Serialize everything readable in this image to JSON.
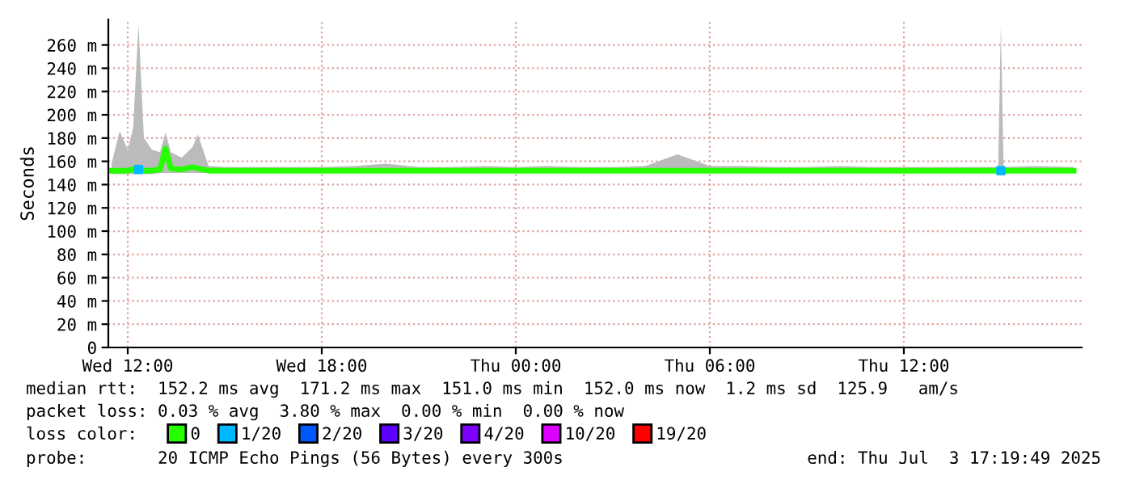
{
  "chart_data": {
    "type": "line",
    "ylabel": "Seconds",
    "x": [
      "2025-07-02T11:30",
      "2025-07-02T11:45",
      "2025-07-02T12:00",
      "2025-07-02T12:10",
      "2025-07-02T12:20",
      "2025-07-02T12:30",
      "2025-07-02T12:45",
      "2025-07-02T13:00",
      "2025-07-02T13:10",
      "2025-07-02T13:20",
      "2025-07-02T13:40",
      "2025-07-02T14:00",
      "2025-07-02T14:10",
      "2025-07-02T14:30",
      "2025-07-02T15:00",
      "2025-07-02T16:00",
      "2025-07-02T17:00",
      "2025-07-02T18:00",
      "2025-07-02T19:00",
      "2025-07-02T20:00",
      "2025-07-02T21:00",
      "2025-07-02T22:00",
      "2025-07-02T23:00",
      "2025-07-03T00:00",
      "2025-07-03T01:00",
      "2025-07-03T02:00",
      "2025-07-03T03:00",
      "2025-07-03T04:00",
      "2025-07-03T05:00",
      "2025-07-03T06:00",
      "2025-07-03T07:00",
      "2025-07-03T08:00",
      "2025-07-03T09:00",
      "2025-07-03T10:00",
      "2025-07-03T11:00",
      "2025-07-03T12:00",
      "2025-07-03T13:00",
      "2025-07-03T14:00",
      "2025-07-03T14:55",
      "2025-07-03T15:00",
      "2025-07-03T15:05",
      "2025-07-03T16:00",
      "2025-07-03T17:15"
    ],
    "series": [
      {
        "name": "0",
        "color": "#26ff00",
        "values": [
          152,
          152,
          152,
          153,
          153,
          152,
          152,
          153,
          171,
          154,
          153,
          155,
          154,
          152,
          152,
          152,
          152,
          152,
          152,
          152,
          152,
          152,
          152,
          152,
          152,
          152,
          152,
          152,
          152,
          152,
          152,
          152,
          152,
          152,
          152,
          152,
          152,
          152,
          152,
          152,
          152,
          152,
          152
        ],
        "lower": [
          149,
          149,
          149,
          149,
          149,
          149,
          149,
          150,
          150,
          150,
          150,
          150,
          150,
          150,
          150,
          150,
          150,
          150,
          150,
          150,
          150,
          150,
          150,
          150,
          150,
          150,
          150,
          150,
          150,
          150,
          150,
          150,
          150,
          150,
          150,
          150,
          150,
          150,
          150,
          150,
          150,
          150,
          150
        ],
        "upper": [
          158,
          186,
          170,
          189,
          278,
          180,
          170,
          168,
          185,
          168,
          163,
          172,
          183,
          156,
          155,
          155,
          155,
          155,
          156,
          158,
          155,
          155,
          156,
          155,
          156,
          155,
          155,
          156,
          166,
          156,
          156,
          155,
          155,
          156,
          155,
          155,
          155,
          155,
          155,
          278,
          155,
          156,
          155
        ]
      },
      {
        "name": "1/20",
        "type": "scatter",
        "marker": "square",
        "color": "#00b8ff",
        "x": [
          "2025-07-02T12:20",
          "2025-07-03T15:00"
        ],
        "values": [
          153,
          152
        ]
      },
      {
        "name": "2/20",
        "type": "scatter",
        "color": "#0059ff",
        "values": [
          null,
          null,
          null,
          null,
          null,
          null,
          null,
          null,
          null,
          null,
          null,
          null,
          null,
          null,
          null,
          null,
          null,
          null,
          null,
          null,
          null,
          null,
          null,
          null,
          null,
          null,
          null,
          null,
          null,
          null,
          null,
          null,
          null,
          null,
          null,
          null,
          null,
          null,
          null,
          null,
          null,
          null,
          null
        ]
      },
      {
        "name": "3/20",
        "type": "scatter",
        "color": "#5e00ff",
        "values": [
          null,
          null,
          null,
          null,
          null,
          null,
          null,
          null,
          null,
          null,
          null,
          null,
          null,
          null,
          null,
          null,
          null,
          null,
          null,
          null,
          null,
          null,
          null,
          null,
          null,
          null,
          null,
          null,
          null,
          null,
          null,
          null,
          null,
          null,
          null,
          null,
          null,
          null,
          null,
          null,
          null,
          null,
          null
        ]
      },
      {
        "name": "4/20",
        "type": "scatter",
        "color": "#7e00ff",
        "values": [
          null,
          null,
          null,
          null,
          null,
          null,
          null,
          null,
          null,
          null,
          null,
          null,
          null,
          null,
          null,
          null,
          null,
          null,
          null,
          null,
          null,
          null,
          null,
          null,
          null,
          null,
          null,
          null,
          null,
          null,
          null,
          null,
          null,
          null,
          null,
          null,
          null,
          null,
          null,
          null,
          null,
          null,
          null
        ]
      },
      {
        "name": "10/20",
        "type": "scatter",
        "color": "#dd00ff",
        "values": [
          null,
          null,
          null,
          null,
          null,
          null,
          null,
          null,
          null,
          null,
          null,
          null,
          null,
          null,
          null,
          null,
          null,
          null,
          null,
          null,
          null,
          null,
          null,
          null,
          null,
          null,
          null,
          null,
          null,
          null,
          null,
          null,
          null,
          null,
          null,
          null,
          null,
          null,
          null,
          null,
          null,
          null,
          null
        ]
      },
      {
        "name": "19/20",
        "type": "scatter",
        "color": "#ff0000",
        "values": [
          null,
          null,
          null,
          null,
          null,
          null,
          null,
          null,
          null,
          null,
          null,
          null,
          null,
          null,
          null,
          null,
          null,
          null,
          null,
          null,
          null,
          null,
          null,
          null,
          null,
          null,
          null,
          null,
          null,
          null,
          null,
          null,
          null,
          null,
          null,
          null,
          null,
          null,
          null,
          null,
          null,
          null,
          null
        ]
      }
    ],
    "xlim": [
      "2025-07-02T11:24",
      "2025-07-03T17:30"
    ],
    "xticks": [
      {
        "value": "2025-07-02T12:00",
        "label": "Wed 12:00"
      },
      {
        "value": "2025-07-02T18:00",
        "label": "Wed 18:00"
      },
      {
        "value": "2025-07-03T00:00",
        "label": "Thu 00:00"
      },
      {
        "value": "2025-07-03T06:00",
        "label": "Thu 06:00"
      },
      {
        "value": "2025-07-03T12:00",
        "label": "Thu 12:00"
      }
    ],
    "ylim": [
      0,
      282
    ],
    "yticks": [
      0,
      {
        "value": 20,
        "label": "20 m"
      },
      {
        "value": 40,
        "label": "40 m"
      },
      {
        "value": 60,
        "label": "60 m"
      },
      {
        "value": 80,
        "label": "80 m"
      },
      {
        "value": 100,
        "label": "100 m"
      },
      {
        "value": 120,
        "label": "120 m"
      },
      {
        "value": 140,
        "label": "140 m"
      },
      {
        "value": 160,
        "label": "160 m"
      },
      {
        "value": 180,
        "label": "180 m"
      },
      {
        "value": 200,
        "label": "200 m"
      },
      {
        "value": 220,
        "label": "220 m"
      },
      {
        "value": 240,
        "label": "240 m"
      },
      {
        "value": 260,
        "label": "260 m"
      }
    ],
    "grid": true,
    "legend": "bottom",
    "annotations": [
      "median rtt:  152.2 ms avg  171.2 ms max  151.0 ms min  152.0 ms now  1.2 ms sd  125.9   am/s",
      "packet loss: 0.03 % avg  3.80 % max  0.00 % min  0.00 % now",
      "loss color:",
      "probe:       20 ICMP Echo Pings (56 Bytes) every 300s",
      "end: Thu Jul  3 17:19:49 2025"
    ]
  }
}
